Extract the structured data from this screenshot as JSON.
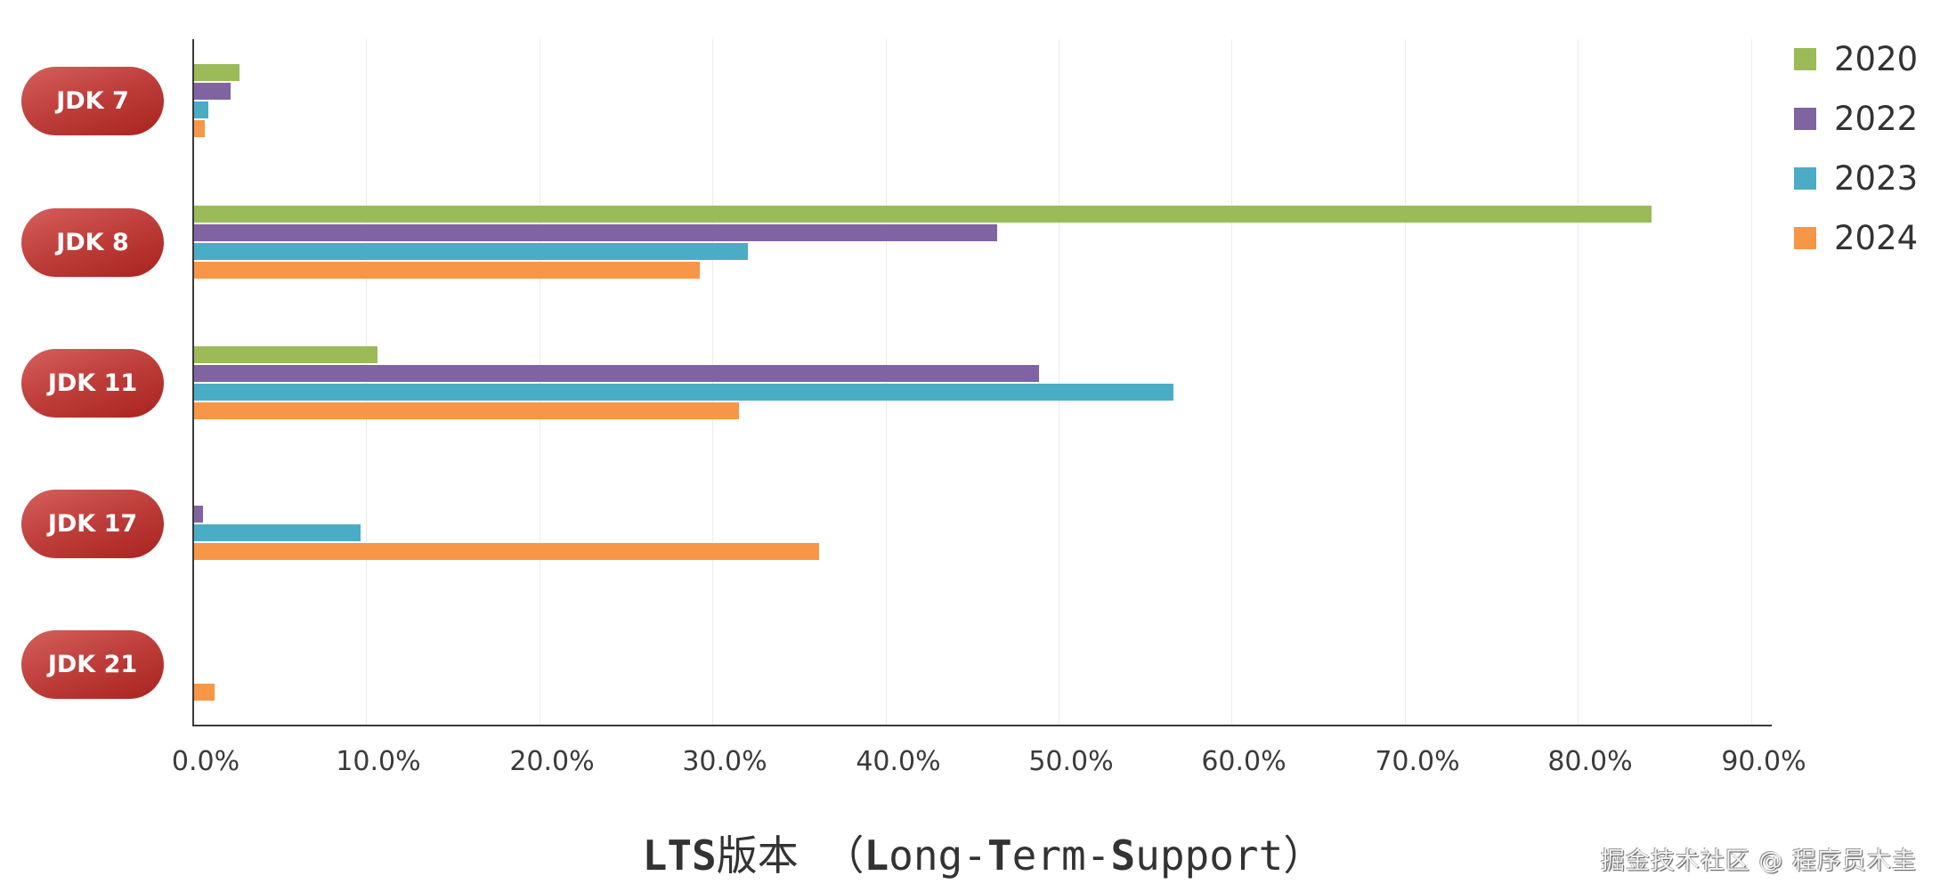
{
  "chart_data": {
    "type": "bar",
    "orientation": "horizontal",
    "title": "",
    "xlabel": "LTS版本（Long-Term-Support）",
    "ylabel": "",
    "categories": [
      "JDK 7",
      "JDK 8",
      "JDK 11",
      "JDK 17",
      "JDK 21"
    ],
    "series": [
      {
        "name": "2020",
        "color": "#9bbb59",
        "values": [
          2.6,
          84.2,
          10.6,
          0,
          0
        ]
      },
      {
        "name": "2022",
        "color": "#8064a2",
        "values": [
          2.1,
          46.4,
          48.8,
          0.5,
          0
        ]
      },
      {
        "name": "2023",
        "color": "#4bacc6",
        "values": [
          0.8,
          32.0,
          56.6,
          9.6,
          0
        ]
      },
      {
        "name": "2024",
        "color": "#f79646",
        "values": [
          0.6,
          29.2,
          31.5,
          36.1,
          1.2
        ]
      }
    ],
    "xlim": [
      0,
      90
    ],
    "xticks": [
      "0.0%",
      "10.0%",
      "20.0%",
      "30.0%",
      "40.0%",
      "50.0%",
      "60.0%",
      "70.0%",
      "80.0%",
      "90.0%"
    ],
    "grid": "vertical",
    "legend_position": "top-right",
    "unit": "%"
  },
  "axis_title": {
    "parts": [
      {
        "text": "LTS",
        "bold": true
      },
      {
        "text": "版本 （",
        "bold": false
      },
      {
        "text": "L",
        "bold": true
      },
      {
        "text": "ong-",
        "bold": false
      },
      {
        "text": "T",
        "bold": true
      },
      {
        "text": "erm-",
        "bold": false
      },
      {
        "text": "S",
        "bold": true
      },
      {
        "text": "upport）",
        "bold": false
      }
    ]
  },
  "watermark": "掘金技术社区 @ 程序员木圭"
}
